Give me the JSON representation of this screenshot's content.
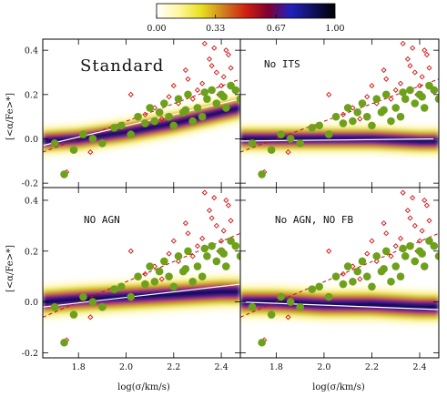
{
  "colorbar": {
    "ticks": [
      "0.00",
      "0.33",
      "0.67",
      "1.00"
    ],
    "tick_values": [
      0.0,
      0.33,
      0.67,
      1.0
    ],
    "colors": [
      "#ffffff",
      "#fff7a0",
      "#e8e020",
      "#d08020",
      "#d02010",
      "#800030",
      "#2020c0",
      "#101060",
      "#000000"
    ]
  },
  "axes": {
    "xlabel": "log(σ/km/s)",
    "ylabel": "[<α/Fe>*]",
    "xlim": [
      1.65,
      2.48
    ],
    "ylim": [
      -0.22,
      0.45
    ],
    "xticks": [
      1.8,
      2.0,
      2.2,
      2.4
    ],
    "xtick_labels": [
      "1.8",
      "2.0",
      "2.2",
      "2.4"
    ],
    "yticks": [
      -0.2,
      0.0,
      0.2,
      0.4
    ],
    "ytick_labels": [
      "-0.2",
      "0.0",
      "0.2",
      "0.4"
    ]
  },
  "chart_data": [
    {
      "type": "scatter",
      "panel_label": "Standard",
      "density_trend": {
        "x": [
          1.65,
          1.8,
          2.0,
          2.2,
          2.4,
          2.48
        ],
        "y": [
          -0.01,
          0.0,
          0.03,
          0.07,
          0.12,
          0.14
        ]
      },
      "fit_line": {
        "x": [
          1.65,
          2.48
        ],
        "y": [
          -0.03,
          0.18
        ]
      },
      "dashed_line": {
        "x": [
          1.65,
          2.48
        ],
        "y": [
          -0.06,
          0.27
        ]
      },
      "red_diamonds": {
        "x": [
          1.75,
          1.85,
          1.95,
          2.02,
          2.08,
          2.12,
          2.18,
          2.22,
          2.26,
          2.3,
          2.33,
          2.35,
          2.38,
          2.4,
          2.42,
          2.44,
          2.28,
          2.32,
          2.36,
          2.39,
          2.41,
          2.43,
          2.2,
          2.15,
          2.25,
          2.37
        ],
        "y": [
          -0.15,
          -0.06,
          0.05,
          0.2,
          0.11,
          0.14,
          0.19,
          0.16,
          0.27,
          0.22,
          0.43,
          0.36,
          0.3,
          0.24,
          0.4,
          0.32,
          0.18,
          0.25,
          0.33,
          0.2,
          0.28,
          0.38,
          0.24,
          0.09,
          0.31,
          0.41
        ]
      },
      "green_points": {
        "x": [
          1.7,
          1.74,
          1.78,
          1.82,
          1.86,
          1.9,
          1.95,
          1.98,
          2.02,
          2.05,
          2.08,
          2.1,
          2.12,
          2.14,
          2.16,
          2.18,
          2.2,
          2.22,
          2.24,
          2.26,
          2.28,
          2.3,
          2.32,
          2.34,
          2.36,
          2.38,
          2.4,
          2.42,
          2.44,
          2.46,
          2.48,
          2.25,
          2.33,
          2.41
        ],
        "y": [
          -0.02,
          -0.16,
          -0.05,
          0.02,
          0.0,
          -0.02,
          0.05,
          0.06,
          0.02,
          0.1,
          0.07,
          0.14,
          0.08,
          0.12,
          0.16,
          0.1,
          0.06,
          0.18,
          0.12,
          0.2,
          0.08,
          0.14,
          0.1,
          0.18,
          0.22,
          0.16,
          0.2,
          0.14,
          0.24,
          0.22,
          0.18,
          0.13,
          0.21,
          0.19
        ]
      }
    },
    {
      "type": "scatter",
      "panel_label": "No ITS",
      "density_trend": {
        "x": [
          1.65,
          1.8,
          2.0,
          2.2,
          2.4,
          2.48
        ],
        "y": [
          0.0,
          0.0,
          0.0,
          0.0,
          -0.01,
          -0.01
        ]
      },
      "fit_line": {
        "x": [
          1.65,
          2.48
        ],
        "y": [
          -0.01,
          -0.0
        ]
      },
      "dashed_line": {
        "x": [
          1.65,
          2.48
        ],
        "y": [
          -0.06,
          0.27
        ]
      },
      "red_diamonds": {
        "x": [
          1.75,
          1.85,
          1.95,
          2.02,
          2.08,
          2.12,
          2.18,
          2.22,
          2.26,
          2.3,
          2.33,
          2.35,
          2.38,
          2.4,
          2.42,
          2.44,
          2.28,
          2.32,
          2.36,
          2.39,
          2.41,
          2.43,
          2.2,
          2.15,
          2.25,
          2.37
        ],
        "y": [
          -0.15,
          -0.06,
          0.05,
          0.2,
          0.11,
          0.14,
          0.19,
          0.16,
          0.27,
          0.22,
          0.43,
          0.36,
          0.3,
          0.24,
          0.4,
          0.32,
          0.18,
          0.25,
          0.33,
          0.2,
          0.28,
          0.38,
          0.24,
          0.09,
          0.31,
          0.41
        ]
      },
      "green_points": {
        "x": [
          1.7,
          1.74,
          1.78,
          1.82,
          1.86,
          1.9,
          1.95,
          1.98,
          2.02,
          2.05,
          2.08,
          2.1,
          2.12,
          2.14,
          2.16,
          2.18,
          2.2,
          2.22,
          2.24,
          2.26,
          2.28,
          2.3,
          2.32,
          2.34,
          2.36,
          2.38,
          2.4,
          2.42,
          2.44,
          2.46,
          2.48,
          2.25,
          2.33,
          2.41
        ],
        "y": [
          -0.02,
          -0.16,
          -0.05,
          0.02,
          0.0,
          -0.02,
          0.05,
          0.06,
          0.02,
          0.1,
          0.07,
          0.14,
          0.08,
          0.12,
          0.16,
          0.1,
          0.06,
          0.18,
          0.12,
          0.2,
          0.08,
          0.14,
          0.1,
          0.18,
          0.22,
          0.16,
          0.2,
          0.14,
          0.24,
          0.22,
          0.18,
          0.13,
          0.21,
          0.19
        ]
      }
    },
    {
      "type": "scatter",
      "panel_label": "NO AGN",
      "density_trend": {
        "x": [
          1.65,
          1.8,
          2.0,
          2.2,
          2.4,
          2.48
        ],
        "y": [
          0.0,
          0.01,
          0.02,
          0.03,
          0.04,
          0.04
        ]
      },
      "fit_line": {
        "x": [
          1.65,
          2.48
        ],
        "y": [
          -0.02,
          0.07
        ]
      },
      "dashed_line": {
        "x": [
          1.65,
          2.48
        ],
        "y": [
          -0.06,
          0.27
        ]
      },
      "red_diamonds": {
        "x": [
          1.75,
          1.85,
          1.95,
          2.02,
          2.08,
          2.12,
          2.18,
          2.22,
          2.26,
          2.3,
          2.33,
          2.35,
          2.38,
          2.4,
          2.42,
          2.44,
          2.28,
          2.32,
          2.36,
          2.39,
          2.41,
          2.43,
          2.2,
          2.15,
          2.25,
          2.37
        ],
        "y": [
          -0.15,
          -0.06,
          0.05,
          0.2,
          0.11,
          0.14,
          0.19,
          0.16,
          0.27,
          0.22,
          0.43,
          0.36,
          0.3,
          0.24,
          0.4,
          0.32,
          0.18,
          0.25,
          0.33,
          0.2,
          0.28,
          0.38,
          0.24,
          0.09,
          0.31,
          0.41
        ]
      },
      "green_points": {
        "x": [
          1.7,
          1.74,
          1.78,
          1.82,
          1.86,
          1.9,
          1.95,
          1.98,
          2.02,
          2.05,
          2.08,
          2.1,
          2.12,
          2.14,
          2.16,
          2.18,
          2.2,
          2.22,
          2.24,
          2.26,
          2.28,
          2.3,
          2.32,
          2.34,
          2.36,
          2.38,
          2.4,
          2.42,
          2.44,
          2.46,
          2.48,
          2.25,
          2.33,
          2.41
        ],
        "y": [
          -0.02,
          -0.16,
          -0.05,
          0.02,
          0.0,
          -0.02,
          0.05,
          0.06,
          0.02,
          0.1,
          0.07,
          0.14,
          0.08,
          0.12,
          0.16,
          0.1,
          0.06,
          0.18,
          0.12,
          0.2,
          0.08,
          0.14,
          0.1,
          0.18,
          0.22,
          0.16,
          0.2,
          0.14,
          0.24,
          0.22,
          0.18,
          0.13,
          0.21,
          0.19
        ]
      }
    },
    {
      "type": "scatter",
      "panel_label": "No AGN, NO FB",
      "density_trend": {
        "x": [
          1.65,
          1.8,
          2.0,
          2.2,
          2.4,
          2.48
        ],
        "y": [
          0.0,
          0.0,
          -0.01,
          -0.01,
          -0.02,
          -0.02
        ]
      },
      "fit_line": {
        "x": [
          1.65,
          2.48
        ],
        "y": [
          0.0,
          -0.03
        ]
      },
      "dashed_line": {
        "x": [
          1.65,
          2.48
        ],
        "y": [
          -0.06,
          0.27
        ]
      },
      "red_diamonds": {
        "x": [
          1.75,
          1.85,
          1.95,
          2.02,
          2.08,
          2.12,
          2.18,
          2.22,
          2.26,
          2.3,
          2.33,
          2.35,
          2.38,
          2.4,
          2.42,
          2.44,
          2.28,
          2.32,
          2.36,
          2.39,
          2.41,
          2.43,
          2.2,
          2.15,
          2.25,
          2.37
        ],
        "y": [
          -0.15,
          -0.06,
          0.05,
          0.2,
          0.11,
          0.14,
          0.19,
          0.16,
          0.27,
          0.22,
          0.43,
          0.36,
          0.3,
          0.24,
          0.4,
          0.32,
          0.18,
          0.25,
          0.33,
          0.2,
          0.28,
          0.38,
          0.24,
          0.09,
          0.31,
          0.41
        ]
      },
      "green_points": {
        "x": [
          1.7,
          1.74,
          1.78,
          1.82,
          1.86,
          1.9,
          1.95,
          1.98,
          2.02,
          2.05,
          2.08,
          2.1,
          2.12,
          2.14,
          2.16,
          2.18,
          2.2,
          2.22,
          2.24,
          2.26,
          2.28,
          2.3,
          2.32,
          2.34,
          2.36,
          2.38,
          2.4,
          2.42,
          2.44,
          2.46,
          2.48,
          2.25,
          2.33,
          2.41
        ],
        "y": [
          -0.02,
          -0.16,
          -0.05,
          0.02,
          0.0,
          -0.02,
          0.05,
          0.06,
          0.02,
          0.1,
          0.07,
          0.14,
          0.08,
          0.12,
          0.16,
          0.1,
          0.06,
          0.18,
          0.12,
          0.2,
          0.08,
          0.14,
          0.1,
          0.18,
          0.22,
          0.16,
          0.2,
          0.14,
          0.24,
          0.22,
          0.18,
          0.13,
          0.21,
          0.19
        ]
      }
    }
  ]
}
